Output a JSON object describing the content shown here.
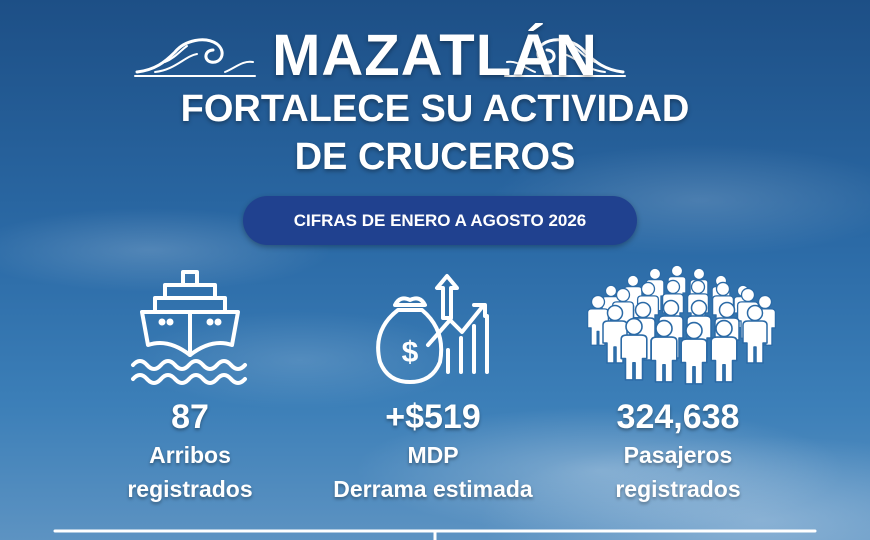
{
  "header": {
    "title": "MAZATLÁN",
    "subtitle_lines": [
      "FORTALECE SU ACTIVIDAD",
      "DE CRUCEROS"
    ],
    "period": "CIFRAS DE ENERO A AGOSTO 2026"
  },
  "stats": [
    {
      "value": "87",
      "label_lines": [
        "Arribos",
        "registrados"
      ]
    },
    {
      "value": "+$519",
      "label_lines": [
        "MDP",
        "Derrama estimada"
      ]
    },
    {
      "value": "324,638",
      "label_lines": [
        "Pasajeros",
        "registrados"
      ]
    }
  ]
}
